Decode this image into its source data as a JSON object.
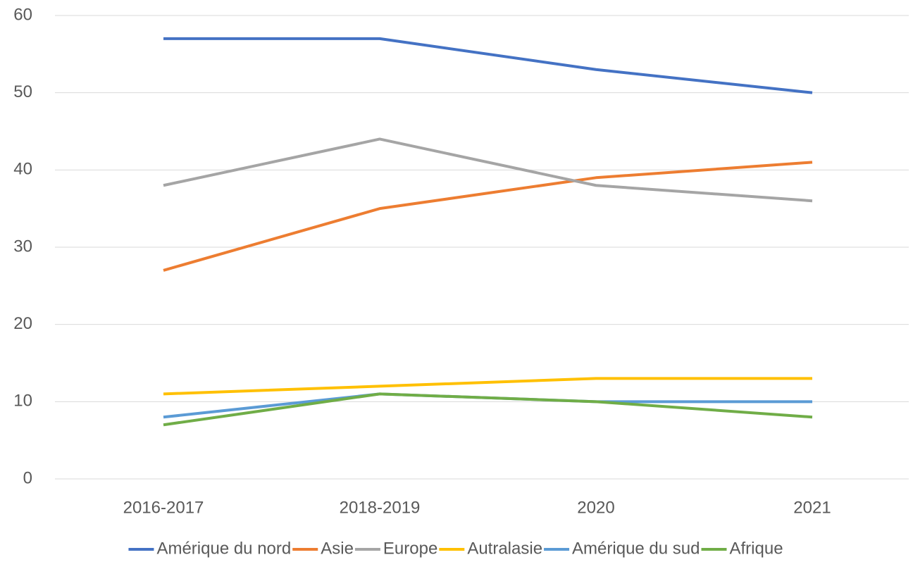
{
  "chart_data": {
    "type": "line",
    "categories": [
      "2016-2017",
      "2018-2019",
      "2020",
      "2021"
    ],
    "series": [
      {
        "name": "Amérique du nord",
        "color": "#4472c4",
        "values": [
          57,
          57,
          53,
          50
        ]
      },
      {
        "name": "Asie",
        "color": "#ed7d31",
        "values": [
          27,
          35,
          39,
          41
        ]
      },
      {
        "name": "Europe",
        "color": "#a5a5a5",
        "values": [
          38,
          44,
          38,
          36
        ]
      },
      {
        "name": "Autralasie",
        "color": "#ffc000",
        "values": [
          11,
          12,
          13,
          13
        ]
      },
      {
        "name": "Amérique du sud",
        "color": "#5b9bd5",
        "values": [
          8,
          11,
          10,
          10
        ]
      },
      {
        "name": "Afrique",
        "color": "#70ad47",
        "values": [
          7,
          11,
          10,
          8
        ]
      }
    ],
    "ylim": [
      0,
      60
    ],
    "yticks": [
      0,
      10,
      20,
      30,
      40,
      50,
      60
    ],
    "grid": true,
    "legend": "bottom"
  }
}
